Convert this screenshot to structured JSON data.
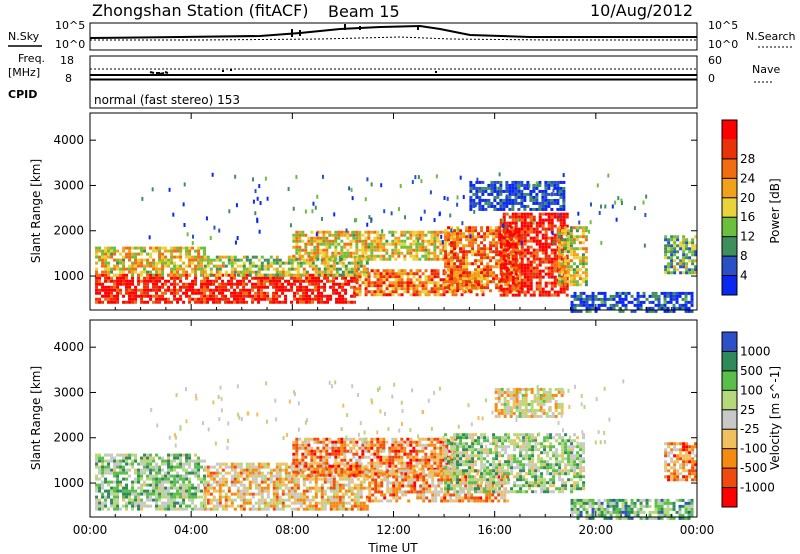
{
  "header": {
    "station": "Zhongshan Station (fitACF)",
    "beam": "Beam 15",
    "date": "10/Aug/2012"
  },
  "noise_panel": {
    "left_label": "N.Sky",
    "left_ticks": [
      "10^5",
      "10^0"
    ],
    "right_ticks": [
      "10^5",
      "10^0"
    ],
    "right_label": "N.Search"
  },
  "freq_panel": {
    "left_label_1": "Freq.",
    "left_label_2": "[MHz]",
    "left_ticks": [
      "18",
      "8"
    ],
    "right_ticks": [
      "60",
      "0"
    ],
    "right_label": "Nave"
  },
  "cpid": {
    "label": "CPID",
    "value": "normal (fast stereo) 153"
  },
  "colors": {
    "power_scale": [
      "#0a28f0",
      "#2a50c8",
      "#3f8f5c",
      "#6cbf3c",
      "#e9d33a",
      "#f2a21a",
      "#f26d12",
      "#ea3208",
      "#ff0000"
    ],
    "velocity_scale": [
      "#ff0000",
      "#f04a0c",
      "#f58a12",
      "#f0c060",
      "#c8c8c8",
      "#b4d87a",
      "#5abf4a",
      "#2e8a5a",
      "#2c50c8"
    ]
  },
  "chart_data": [
    {
      "type": "heatmap",
      "name": "power-panel",
      "ylabel": "Slant Range [km]",
      "yticks": [
        "1000",
        "2000",
        "3000",
        "4000"
      ],
      "ylim": [
        250,
        4600
      ],
      "xlim": [
        "00:00",
        "24:00"
      ],
      "colorbar": {
        "label": "Power [dB]",
        "ticks": [
          "4",
          "8",
          "12",
          "16",
          "20",
          "24",
          "28"
        ],
        "range": [
          0,
          32
        ]
      },
      "bands": [
        {
          "t0": 0.2,
          "t1": 10.5,
          "r0": 400,
          "r1": 1050,
          "level": 0.92
        },
        {
          "t0": 0.2,
          "t1": 4.5,
          "r0": 1050,
          "r1": 1650,
          "level": 0.55
        },
        {
          "t0": 4.5,
          "t1": 11.0,
          "r0": 1050,
          "r1": 1450,
          "level": 0.45
        },
        {
          "t0": 10.5,
          "t1": 15.5,
          "r0": 600,
          "r1": 1150,
          "level": 0.7
        },
        {
          "t0": 8.0,
          "t1": 14.5,
          "r0": 1350,
          "r1": 2000,
          "level": 0.55
        },
        {
          "t0": 14.0,
          "t1": 17.0,
          "r0": 700,
          "r1": 2100,
          "level": 0.72
        },
        {
          "t0": 16.2,
          "t1": 18.9,
          "r0": 600,
          "r1": 2400,
          "level": 0.9
        },
        {
          "t0": 18.5,
          "t1": 19.6,
          "r0": 800,
          "r1": 2100,
          "level": 0.5
        },
        {
          "t0": 19.0,
          "t1": 23.8,
          "r0": 250,
          "r1": 650,
          "level": 0.12
        },
        {
          "t0": 22.7,
          "t1": 24.0,
          "r0": 1100,
          "r1": 1900,
          "level": 0.35
        },
        {
          "t0": 15.0,
          "t1": 18.7,
          "r0": 2500,
          "r1": 3100,
          "level": 0.1
        }
      ]
    },
    {
      "type": "heatmap",
      "name": "velocity-panel",
      "ylabel": "Slant Range [km]",
      "yticks": [
        "1000",
        "2000",
        "3000",
        "4000"
      ],
      "ylim": [
        250,
        4600
      ],
      "xticks": [
        "00:00",
        "04:00",
        "08:00",
        "12:00",
        "16:00",
        "20:00",
        "00:00"
      ],
      "xlabel": "Time UT",
      "colorbar": {
        "label": "Velocity [m s^-1]",
        "ticks": [
          "-1000",
          "-500",
          "-100",
          "-25",
          "25",
          "100",
          "500",
          "1000"
        ],
        "range": [
          -1250,
          1250
        ]
      },
      "bands": [
        {
          "t0": 0.2,
          "t1": 4.5,
          "r0": 400,
          "r1": 1650,
          "level": 0.65
        },
        {
          "t0": 4.5,
          "t1": 11.0,
          "r0": 400,
          "r1": 1450,
          "level": 0.4
        },
        {
          "t0": 8.0,
          "t1": 14.5,
          "r0": 1150,
          "r1": 2000,
          "level": 0.28
        },
        {
          "t0": 11.0,
          "t1": 16.5,
          "r0": 600,
          "r1": 1300,
          "level": 0.32
        },
        {
          "t0": 14.0,
          "t1": 19.5,
          "r0": 800,
          "r1": 2100,
          "level": 0.62
        },
        {
          "t0": 19.0,
          "t1": 23.8,
          "r0": 250,
          "r1": 650,
          "level": 0.7
        },
        {
          "t0": 22.7,
          "t1": 24.0,
          "r0": 1100,
          "r1": 1900,
          "level": 0.3
        },
        {
          "t0": 16.0,
          "t1": 18.7,
          "r0": 2500,
          "r1": 3100,
          "level": 0.46
        }
      ]
    }
  ]
}
